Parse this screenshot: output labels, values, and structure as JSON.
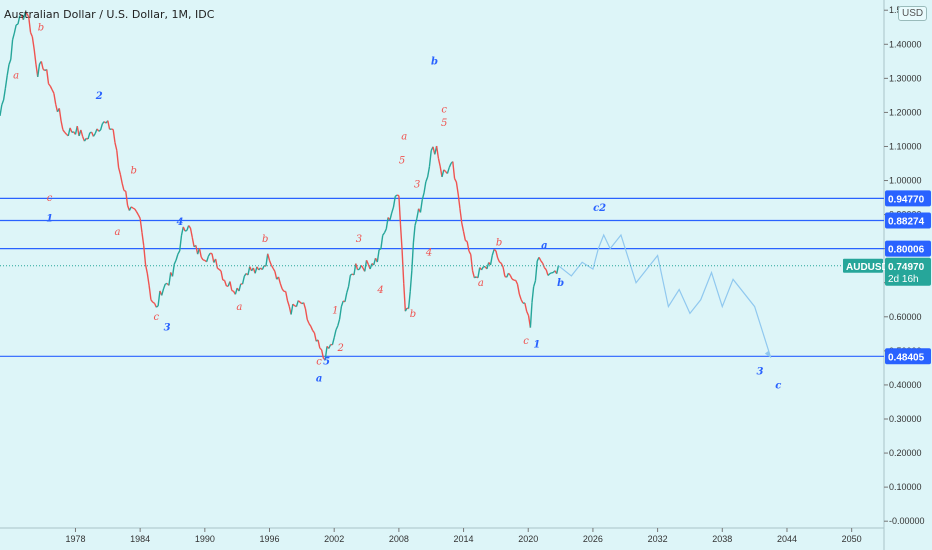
{
  "title": "Australian Dollar / U.S. Dollar, 1M, IDC",
  "currency_badge": "USD",
  "colors": {
    "background": "#ddf5f8",
    "up": "#26a69a",
    "down": "#ef5350",
    "level_line": "#2962ff",
    "projection": "#90c8ef",
    "wave_blue": "#2962ff",
    "wave_red": "#ef5350",
    "symbol_badge": "#26a69a"
  },
  "chart_data": {
    "type": "line",
    "xlim": [
      1971,
      2053
    ],
    "ylim": [
      -0.02,
      1.53
    ],
    "x_ticks": [
      "1978",
      "1984",
      "1990",
      "1996",
      "2002",
      "2008",
      "2014",
      "2020",
      "2026",
      "2032",
      "2038",
      "2044",
      "2050"
    ],
    "y_ticks": [
      "1.50000",
      "1.40000",
      "1.30000",
      "1.20000",
      "1.10000",
      "1.00000",
      "0.90000",
      "0.80000",
      "0.70000",
      "0.60000",
      "0.50000",
      "0.40000",
      "0.30000",
      "0.20000",
      "0.10000",
      "-0.00000"
    ],
    "series": [
      {
        "x": [
          1971,
          1972.5,
          1973.5,
          1974,
          1974.5,
          1975,
          1976,
          1977,
          1978,
          1979,
          1980.5,
          1981.5,
          1982,
          1983,
          1984,
          1985,
          1985.5,
          1986,
          1987,
          1988,
          1988.5,
          1989,
          1990,
          1991,
          1992,
          1993,
          1994,
          1995,
          1996,
          1997,
          1998,
          1999,
          2000,
          2001,
          2002,
          2003,
          2004,
          2005,
          2006,
          2007,
          2008,
          2008.6,
          2008.9,
          2009.5,
          2010,
          2011,
          2011.5,
          2012,
          2013,
          2014,
          2015,
          2016,
          2017,
          2018,
          2019,
          2020.2,
          2020.5,
          2021,
          2021.5,
          2022,
          2022.8
        ],
        "y": [
          1.19,
          1.46,
          1.5,
          1.42,
          1.32,
          1.34,
          1.25,
          1.14,
          1.15,
          1.12,
          1.17,
          1.15,
          1.04,
          0.92,
          0.88,
          0.66,
          0.62,
          0.68,
          0.72,
          0.85,
          0.88,
          0.8,
          0.78,
          0.77,
          0.7,
          0.68,
          0.74,
          0.73,
          0.78,
          0.7,
          0.62,
          0.64,
          0.55,
          0.48,
          0.53,
          0.66,
          0.75,
          0.75,
          0.77,
          0.88,
          0.97,
          0.62,
          0.63,
          0.87,
          0.92,
          1.08,
          1.1,
          1.02,
          1.04,
          0.86,
          0.72,
          0.74,
          0.79,
          0.72,
          0.7,
          0.57,
          0.69,
          0.78,
          0.76,
          0.71,
          0.75
        ]
      },
      {
        "name": "projection",
        "x": [
          2022.8,
          2024,
          2025,
          2026,
          2026.5,
          2027,
          2027.6,
          2028.6,
          2030,
          2032,
          2033,
          2034,
          2035,
          2036,
          2037,
          2038,
          2039,
          2041,
          2042.5
        ],
        "y": [
          0.75,
          0.72,
          0.76,
          0.74,
          0.8,
          0.84,
          0.8,
          0.84,
          0.7,
          0.78,
          0.63,
          0.68,
          0.61,
          0.65,
          0.73,
          0.63,
          0.71,
          0.63,
          0.48
        ]
      }
    ],
    "levels": [
      {
        "value": 0.9477,
        "label": "0.94770"
      },
      {
        "value": 0.88274,
        "label": "0.88274"
      },
      {
        "value": 0.80006,
        "label": "0.80006"
      },
      {
        "value": 0.48405,
        "label": "0.48405"
      }
    ],
    "current_price": {
      "symbol": "AUDUSD",
      "value": "0.74970",
      "countdown": "2d 16h",
      "numeric": 0.7497
    },
    "wave_labels": [
      {
        "text": "a",
        "x": 1972.5,
        "y": 1.3,
        "color": "red",
        "size": "small"
      },
      {
        "text": "b",
        "x": 1974.8,
        "y": 1.44,
        "color": "red",
        "size": "small"
      },
      {
        "text": "c",
        "x": 1975.6,
        "y": 0.94,
        "color": "red",
        "size": "small"
      },
      {
        "text": "1",
        "x": 1975.6,
        "y": 0.88,
        "color": "blue",
        "size": "small"
      },
      {
        "text": "2",
        "x": 1980.2,
        "y": 1.24,
        "color": "blue",
        "size": "small"
      },
      {
        "text": "b",
        "x": 1983.4,
        "y": 1.02,
        "color": "red",
        "size": "small"
      },
      {
        "text": "a",
        "x": 1981.9,
        "y": 0.84,
        "color": "red",
        "size": "small"
      },
      {
        "text": "4",
        "x": 1987.7,
        "y": 0.87,
        "color": "blue",
        "size": "small"
      },
      {
        "text": "c",
        "x": 1985.5,
        "y": 0.59,
        "color": "red",
        "size": "small"
      },
      {
        "text": "3",
        "x": 1986.5,
        "y": 0.56,
        "color": "blue",
        "size": "small"
      },
      {
        "text": "b",
        "x": 1995.6,
        "y": 0.82,
        "color": "red",
        "size": "small"
      },
      {
        "text": "a",
        "x": 1993.2,
        "y": 0.62,
        "color": "red",
        "size": "small"
      },
      {
        "text": "3",
        "x": 2004.3,
        "y": 0.82,
        "color": "red",
        "size": "small"
      },
      {
        "text": "1",
        "x": 2002.1,
        "y": 0.61,
        "color": "red",
        "size": "small"
      },
      {
        "text": "4",
        "x": 2006.3,
        "y": 0.67,
        "color": "red",
        "size": "small"
      },
      {
        "text": "c",
        "x": 2000.6,
        "y": 0.46,
        "color": "red",
        "size": "small"
      },
      {
        "text": "5",
        "x": 2001.3,
        "y": 0.46,
        "color": "blue",
        "size": "small"
      },
      {
        "text": "2",
        "x": 2002.6,
        "y": 0.5,
        "color": "red",
        "size": "small"
      },
      {
        "text": "a",
        "x": 2000.6,
        "y": 0.41,
        "color": "blue",
        "size": "large"
      },
      {
        "text": "5",
        "x": 2008.3,
        "y": 1.05,
        "color": "red",
        "size": "small"
      },
      {
        "text": "a",
        "x": 2008.5,
        "y": 1.12,
        "color": "red",
        "size": "small"
      },
      {
        "text": "3",
        "x": 2009.7,
        "y": 0.98,
        "color": "red",
        "size": "small"
      },
      {
        "text": "4",
        "x": 2010.8,
        "y": 0.78,
        "color": "red",
        "size": "small"
      },
      {
        "text": "b",
        "x": 2009.3,
        "y": 0.6,
        "color": "red",
        "size": "small"
      },
      {
        "text": "c",
        "x": 2012.2,
        "y": 1.2,
        "color": "red",
        "size": "small"
      },
      {
        "text": "5",
        "x": 2012.2,
        "y": 1.16,
        "color": "red",
        "size": "small"
      },
      {
        "text": "b",
        "x": 2011.3,
        "y": 1.34,
        "color": "blue",
        "size": "large"
      },
      {
        "text": "b",
        "x": 2017.3,
        "y": 0.81,
        "color": "red",
        "size": "small"
      },
      {
        "text": "a",
        "x": 2015.6,
        "y": 0.69,
        "color": "red",
        "size": "small"
      },
      {
        "text": "c",
        "x": 2019.8,
        "y": 0.52,
        "color": "red",
        "size": "small"
      },
      {
        "text": "1",
        "x": 2020.8,
        "y": 0.51,
        "color": "blue",
        "size": "small"
      },
      {
        "text": "a",
        "x": 2021.5,
        "y": 0.8,
        "color": "blue",
        "size": "small"
      },
      {
        "text": "b",
        "x": 2023,
        "y": 0.69,
        "color": "blue",
        "size": "small"
      },
      {
        "text": "c",
        "x": 2026.3,
        "y": 0.91,
        "color": "blue",
        "size": "small"
      },
      {
        "text": "2",
        "x": 2026.9,
        "y": 0.91,
        "color": "blue",
        "size": "small"
      },
      {
        "text": "3",
        "x": 2041.5,
        "y": 0.43,
        "color": "blue",
        "size": "small"
      },
      {
        "text": "c",
        "x": 2043.2,
        "y": 0.39,
        "color": "blue",
        "size": "large"
      }
    ]
  }
}
